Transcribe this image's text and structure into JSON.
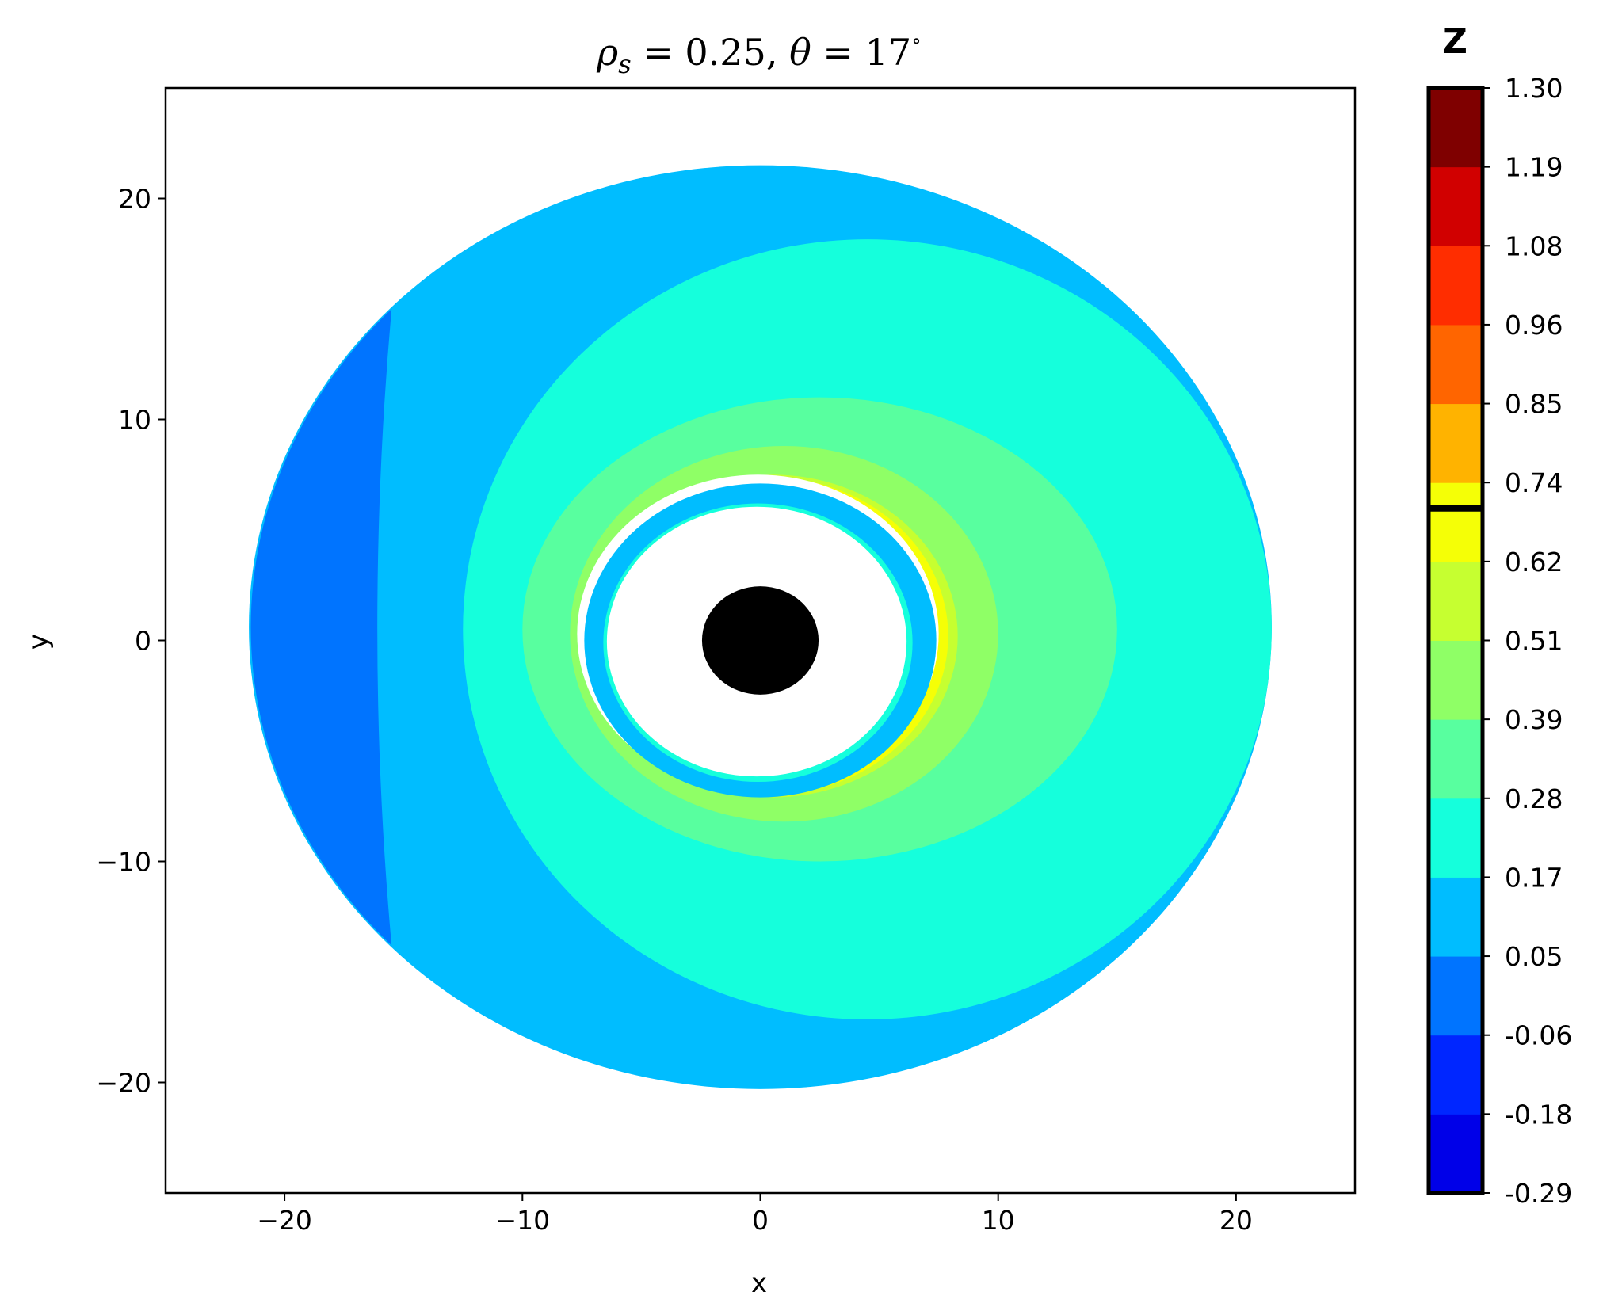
{
  "chart_data": {
    "type": "filled-contour",
    "title": "ρ_s = 0.25,  θ = 17 °",
    "title_parts": {
      "rho": "ρ",
      "rho_sub": "s",
      "rho_value": " = 0.25,  ",
      "theta": "θ",
      "theta_value": " = 17",
      "degree": "∘"
    },
    "xlabel": "x",
    "ylabel": "y",
    "xlim": [
      -25,
      25
    ],
    "ylim": [
      -25,
      25
    ],
    "xticks": [
      -20,
      -10,
      0,
      10,
      20
    ],
    "yticks": [
      -20,
      -10,
      0,
      10,
      20
    ],
    "xtick_labels": [
      "−20",
      "−10",
      "0",
      "10",
      "20"
    ],
    "ytick_labels": [
      "−20",
      "−10",
      "0",
      "10",
      "20"
    ],
    "grid": false,
    "colorbar": {
      "title": "Z",
      "tick_labels": [
        "-0.29",
        "-0.18",
        "-0.06",
        "0.05",
        "0.17",
        "0.28",
        "0.39",
        "0.51",
        "0.62",
        "0.74",
        "0.85",
        "0.96",
        "1.08",
        "1.19",
        "1.30"
      ],
      "min": -0.29,
      "max": 1.3,
      "band_colors": [
        "#0000e8",
        "#0026ff",
        "#0074ff",
        "#00bdff",
        "#15ffdc",
        "#58ff9f",
        "#8fff66",
        "#c6ff30",
        "#f5ff06",
        "#ffb300",
        "#ff6500",
        "#ff2d00",
        "#d10000",
        "#7f0000"
      ],
      "marker_value": 0.695
    },
    "regions": [
      {
        "name": "outer disk",
        "cx": 0,
        "cy": 0.6,
        "rx": 21.5,
        "ry": 20.9,
        "color": "#00bdff"
      },
      {
        "name": "left crescent",
        "color": "#0074ff"
      },
      {
        "name": "mid disk",
        "cx": 4.5,
        "cy": 0.5,
        "rx": 21.5,
        "ry": 15.5,
        "color": "#15ffdc"
      },
      {
        "name": "band 0.28-0.39",
        "cx": 2.5,
        "cy": 0.5,
        "rx": 12.5,
        "ry": 10.5,
        "color": "#58ff9f"
      },
      {
        "name": "band 0.39-0.51",
        "cx": 1.0,
        "cy": 0.3,
        "rx": 9.0,
        "ry": 8.5,
        "color": "#8fff66"
      },
      {
        "name": "band 0.51-0.62",
        "cx": 0.5,
        "cy": 0.2,
        "rx": 7.8,
        "ry": 7.3,
        "color": "#c6ff30"
      },
      {
        "name": "inner ring",
        "cx": 0,
        "cy": 0,
        "rx": 7.4,
        "ry": 7.1,
        "color": "#00bdff"
      },
      {
        "name": "black hole shadow",
        "cx": 0,
        "cy": 0,
        "r": 2.5,
        "color": "#000000"
      }
    ]
  }
}
